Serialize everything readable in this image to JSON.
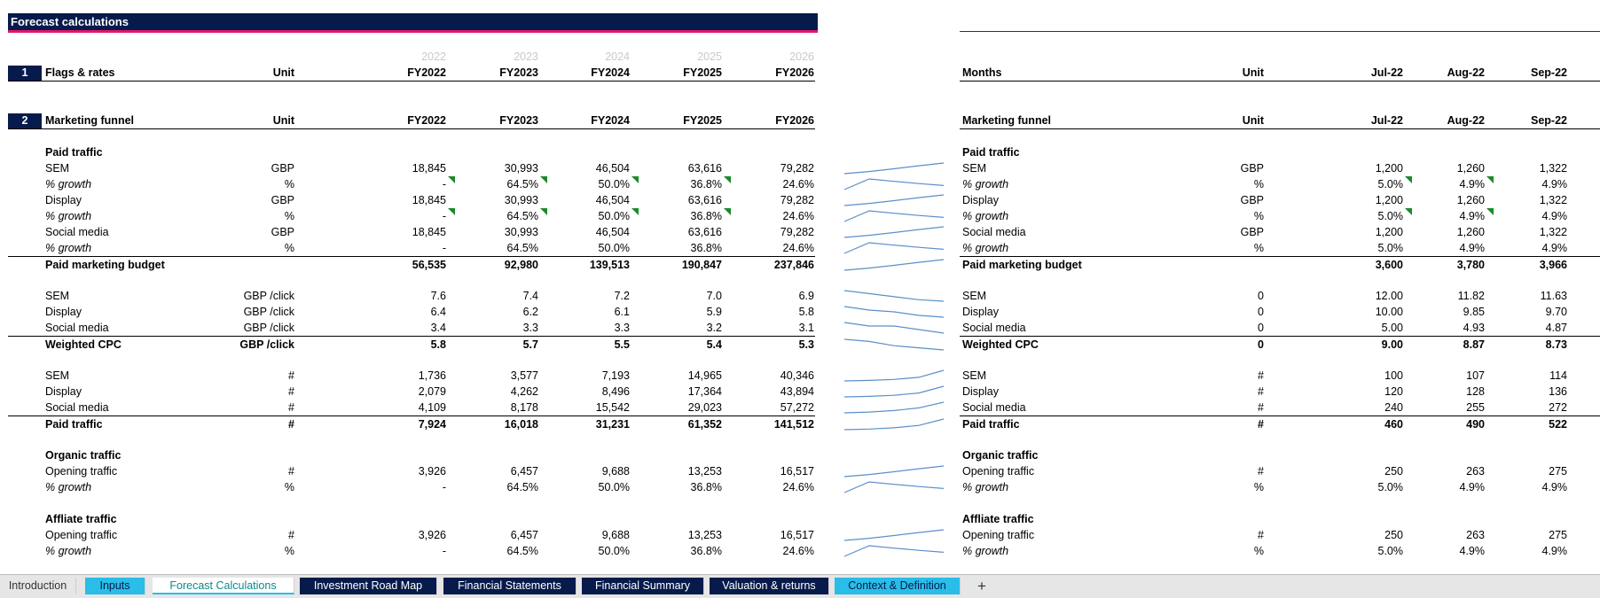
{
  "banner_title": "Forecast calculations",
  "years_top": [
    "2022",
    "2023",
    "2024",
    "2025",
    "2026"
  ],
  "left": {
    "section1": {
      "num": "1",
      "label": "Flags & rates",
      "unit": "Unit",
      "cols": [
        "FY2022",
        "FY2023",
        "FY2024",
        "FY2025",
        "FY2026"
      ]
    },
    "section2": {
      "num": "2",
      "label": "Marketing funnel",
      "unit": "Unit",
      "cols": [
        "FY2022",
        "FY2023",
        "FY2024",
        "FY2025",
        "FY2026"
      ]
    },
    "rows": {
      "paid_traffic_head": "Paid traffic",
      "sem": {
        "label": "SEM",
        "unit": "GBP",
        "v": [
          "18,845",
          "30,993",
          "46,504",
          "63,616",
          "79,282"
        ]
      },
      "sem_g": {
        "label": "% growth",
        "unit": "%",
        "v": [
          "-",
          "64.5%",
          "50.0%",
          "36.8%",
          "24.6%"
        ]
      },
      "display": {
        "label": "Display",
        "unit": "GBP",
        "v": [
          "18,845",
          "30,993",
          "46,504",
          "63,616",
          "79,282"
        ]
      },
      "display_g": {
        "label": "% growth",
        "unit": "%",
        "v": [
          "-",
          "64.5%",
          "50.0%",
          "36.8%",
          "24.6%"
        ]
      },
      "social": {
        "label": "Social media",
        "unit": "GBP",
        "v": [
          "18,845",
          "30,993",
          "46,504",
          "63,616",
          "79,282"
        ]
      },
      "social_g": {
        "label": "% growth",
        "unit": "%",
        "v": [
          "-",
          "64.5%",
          "50.0%",
          "36.8%",
          "24.6%"
        ]
      },
      "budget": {
        "label": "Paid marketing budget",
        "unit": "",
        "v": [
          "56,535",
          "92,980",
          "139,513",
          "190,847",
          "237,846"
        ]
      },
      "cpc_sem": {
        "label": "SEM",
        "unit": "GBP /click",
        "v": [
          "7.6",
          "7.4",
          "7.2",
          "7.0",
          "6.9"
        ]
      },
      "cpc_display": {
        "label": "Display",
        "unit": "GBP /click",
        "v": [
          "6.4",
          "6.2",
          "6.1",
          "5.9",
          "5.8"
        ]
      },
      "cpc_social": {
        "label": "Social media",
        "unit": "GBP /click",
        "v": [
          "3.4",
          "3.3",
          "3.3",
          "3.2",
          "3.1"
        ]
      },
      "cpc_w": {
        "label": "Weighted CPC",
        "unit": "GBP /click",
        "v": [
          "5.8",
          "5.7",
          "5.5",
          "5.4",
          "5.3"
        ]
      },
      "t_sem": {
        "label": "SEM",
        "unit": "#",
        "v": [
          "1,736",
          "3,577",
          "7,193",
          "14,965",
          "40,346"
        ]
      },
      "t_display": {
        "label": "Display",
        "unit": "#",
        "v": [
          "2,079",
          "4,262",
          "8,496",
          "17,364",
          "43,894"
        ]
      },
      "t_social": {
        "label": "Social media",
        "unit": "#",
        "v": [
          "4,109",
          "8,178",
          "15,542",
          "29,023",
          "57,272"
        ]
      },
      "t_paid": {
        "label": "Paid traffic",
        "unit": "#",
        "v": [
          "7,924",
          "16,018",
          "31,231",
          "61,352",
          "141,512"
        ]
      },
      "organic_head": "Organic traffic",
      "org_open": {
        "label": "Opening traffic",
        "unit": "#",
        "v": [
          "3,926",
          "6,457",
          "9,688",
          "13,253",
          "16,517"
        ]
      },
      "org_g": {
        "label": "% growth",
        "unit": "%",
        "v": [
          "-",
          "64.5%",
          "50.0%",
          "36.8%",
          "24.6%"
        ]
      },
      "affiliate_head": "Affliate traffic",
      "aff_open": {
        "label": "Opening traffic",
        "unit": "#",
        "v": [
          "3,926",
          "6,457",
          "9,688",
          "13,253",
          "16,517"
        ]
      },
      "aff_g": {
        "label": "% growth",
        "unit": "%",
        "v": [
          "-",
          "64.5%",
          "50.0%",
          "36.8%",
          "24.6%"
        ]
      }
    }
  },
  "right": {
    "header1": {
      "label": "Months",
      "unit": "Unit",
      "cols": [
        "Jul-22",
        "Aug-22",
        "Sep-22"
      ]
    },
    "header2": {
      "label": "Marketing funnel",
      "unit": "Unit",
      "cols": [
        "Jul-22",
        "Aug-22",
        "Sep-22"
      ]
    },
    "rows": {
      "paid_traffic_head": "Paid traffic",
      "sem": {
        "label": "SEM",
        "unit": "GBP",
        "v": [
          "1,200",
          "1,260",
          "1,322"
        ]
      },
      "sem_g": {
        "label": "% growth",
        "unit": "%",
        "v": [
          "5.0%",
          "4.9%",
          "4.9%"
        ]
      },
      "display": {
        "label": "Display",
        "unit": "GBP",
        "v": [
          "1,200",
          "1,260",
          "1,322"
        ]
      },
      "display_g": {
        "label": "% growth",
        "unit": "%",
        "v": [
          "5.0%",
          "4.9%",
          "4.9%"
        ]
      },
      "social": {
        "label": "Social media",
        "unit": "GBP",
        "v": [
          "1,200",
          "1,260",
          "1,322"
        ]
      },
      "social_g": {
        "label": "% growth",
        "unit": "%",
        "v": [
          "5.0%",
          "4.9%",
          "4.9%"
        ]
      },
      "budget": {
        "label": "Paid marketing budget",
        "unit": "",
        "v": [
          "3,600",
          "3,780",
          "3,966"
        ]
      },
      "cpc_sem": {
        "label": "SEM",
        "unit": "0",
        "v": [
          "12.00",
          "11.82",
          "11.63"
        ]
      },
      "cpc_display": {
        "label": "Display",
        "unit": "0",
        "v": [
          "10.00",
          "9.85",
          "9.70"
        ]
      },
      "cpc_social": {
        "label": "Social media",
        "unit": "0",
        "v": [
          "5.00",
          "4.93",
          "4.87"
        ]
      },
      "cpc_w": {
        "label": "Weighted CPC",
        "unit": "0",
        "v": [
          "9.00",
          "8.87",
          "8.73"
        ]
      },
      "t_sem": {
        "label": "SEM",
        "unit": "#",
        "v": [
          "100",
          "107",
          "114"
        ]
      },
      "t_display": {
        "label": "Display",
        "unit": "#",
        "v": [
          "120",
          "128",
          "136"
        ]
      },
      "t_social": {
        "label": "Social media",
        "unit": "#",
        "v": [
          "240",
          "255",
          "272"
        ]
      },
      "t_paid": {
        "label": "Paid traffic",
        "unit": "#",
        "v": [
          "460",
          "490",
          "522"
        ]
      },
      "organic_head": "Organic traffic",
      "org_open": {
        "label": "Opening traffic",
        "unit": "#",
        "v": [
          "250",
          "263",
          "275"
        ]
      },
      "org_g": {
        "label": "% growth",
        "unit": "%",
        "v": [
          "5.0%",
          "4.9%",
          "4.9%"
        ]
      },
      "affiliate_head": "Affliate traffic",
      "aff_open": {
        "label": "Opening traffic",
        "unit": "#",
        "v": [
          "250",
          "263",
          "275"
        ]
      },
      "aff_g": {
        "label": "% growth",
        "unit": "%",
        "v": [
          "5.0%",
          "4.9%",
          "4.9%"
        ]
      }
    }
  },
  "tabs": [
    {
      "label": "Introduction",
      "style": "plain"
    },
    {
      "label": "Inputs",
      "style": "cyan"
    },
    {
      "label": "Forecast Calculations",
      "style": "active"
    },
    {
      "label": "Investment Road Map",
      "style": "navy"
    },
    {
      "label": "Financial Statements",
      "style": "navy"
    },
    {
      "label": "Financial Summary",
      "style": "navy"
    },
    {
      "label": "Valuation & returns",
      "style": "navy"
    },
    {
      "label": "Context & Definition",
      "style": "cyan"
    },
    {
      "label": "+",
      "style": "plus"
    }
  ],
  "colors": {
    "navy": "#061b4b",
    "pink": "#e0176c",
    "cyan": "#29bde8",
    "flag": "#1a8a2a",
    "sparkline": "#5b8fc9"
  }
}
